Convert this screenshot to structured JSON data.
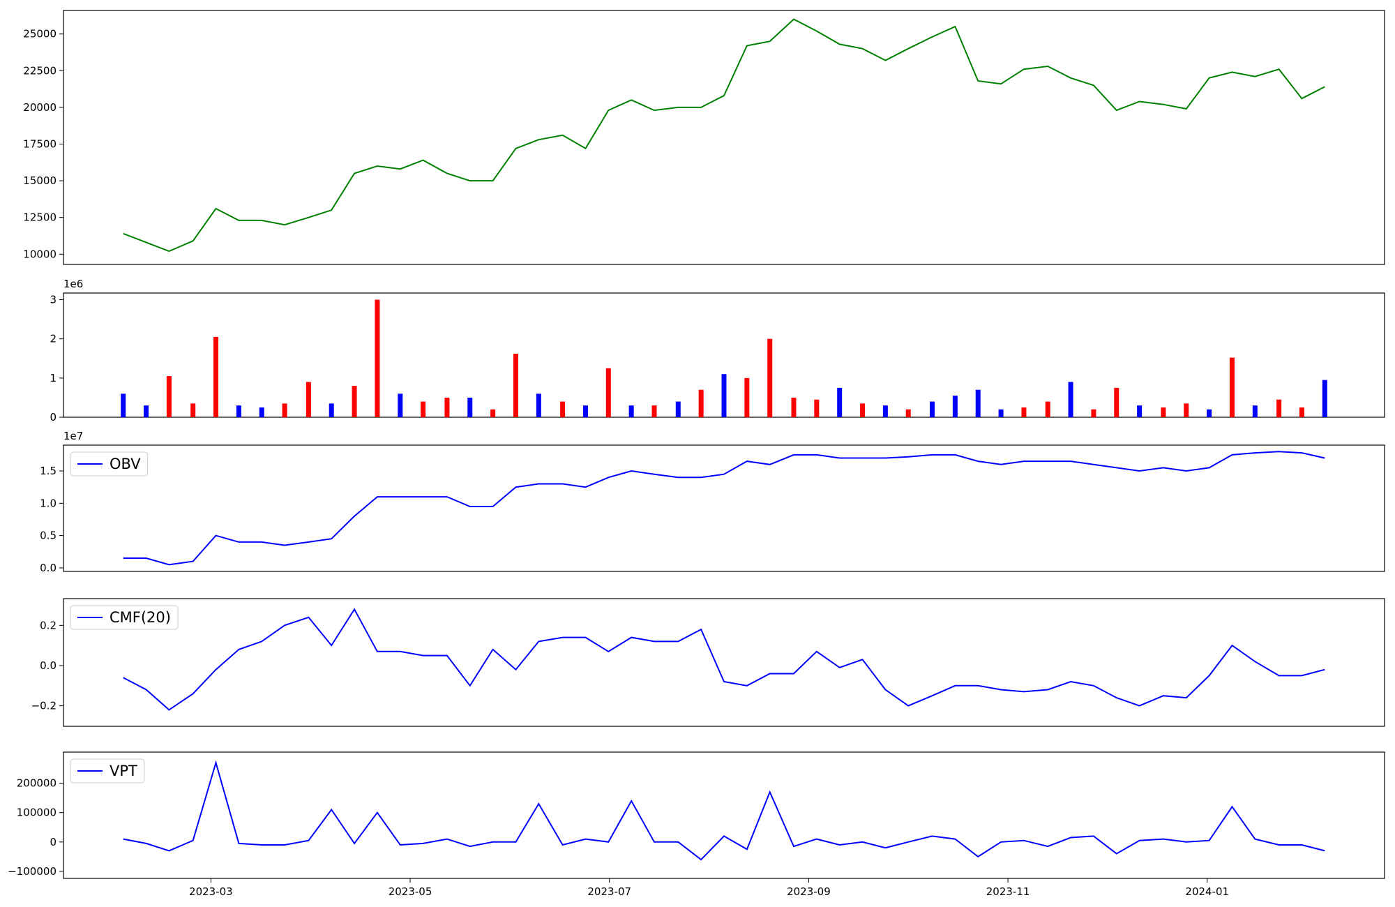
{
  "chart_data": [
    {
      "type": "line",
      "xlim": [
        1.52,
        14.78
      ],
      "ylim": [
        9300,
        26600
      ],
      "yticks": [
        10000,
        12500,
        15000,
        17500,
        20000,
        22500,
        25000
      ],
      "x": [
        2.12,
        2.35,
        2.58,
        2.82,
        3.05,
        3.28,
        3.51,
        3.74,
        3.98,
        4.21,
        4.44,
        4.67,
        4.9,
        5.13,
        5.37,
        5.6,
        5.83,
        6.06,
        6.29,
        6.53,
        6.76,
        6.99,
        7.22,
        7.45,
        7.69,
        7.92,
        8.15,
        8.38,
        8.61,
        8.85,
        9.08,
        9.31,
        9.54,
        9.77,
        10.0,
        10.24,
        10.47,
        10.7,
        10.93,
        11.16,
        11.4,
        11.63,
        11.86,
        12.09,
        12.32,
        12.56,
        12.79,
        13.02,
        13.25,
        13.48,
        13.72,
        13.95,
        14.18
      ],
      "series": [
        {
          "color": "#008000",
          "values": [
            11400,
            10800,
            10200,
            10900,
            13100,
            12300,
            12300,
            12000,
            12500,
            13000,
            15500,
            16000,
            15800,
            16400,
            15500,
            15000,
            15000,
            17200,
            17800,
            18100,
            17200,
            19800,
            20500,
            19800,
            20000,
            20000,
            20800,
            24200,
            24500,
            26000,
            25200,
            24300,
            24000,
            23200,
            24000,
            24800,
            25500,
            21800,
            21600,
            22600,
            22800,
            22000,
            21500,
            19800,
            20400,
            20200,
            19900,
            22000,
            22400,
            22100,
            22600,
            20600,
            21400
          ]
        }
      ]
    },
    {
      "type": "bar",
      "xlim": [
        1.52,
        14.78
      ],
      "ylim": [
        0,
        3.17
      ],
      "yticks": [
        0,
        1,
        2,
        3
      ],
      "offset_text": "1e6",
      "x": [
        2.12,
        2.35,
        2.58,
        2.82,
        3.05,
        3.28,
        3.51,
        3.74,
        3.98,
        4.21,
        4.44,
        4.67,
        4.9,
        5.13,
        5.37,
        5.6,
        5.83,
        6.06,
        6.29,
        6.53,
        6.76,
        6.99,
        7.22,
        7.45,
        7.69,
        7.92,
        8.15,
        8.38,
        8.61,
        8.85,
        9.08,
        9.31,
        9.54,
        9.77,
        10.0,
        10.24,
        10.47,
        10.7,
        10.93,
        11.16,
        11.4,
        11.63,
        11.86,
        12.09,
        12.32,
        12.56,
        12.79,
        13.02,
        13.25,
        13.48,
        13.72,
        13.95,
        14.18
      ],
      "series": [
        {
          "values": [
            0.6,
            0.3,
            1.05,
            0.35,
            2.05,
            0.3,
            0.25,
            0.35,
            0.9,
            0.35,
            0.8,
            3.0,
            0.6,
            0.4,
            0.5,
            0.5,
            0.2,
            1.62,
            0.6,
            0.4,
            0.3,
            1.25,
            0.3,
            0.3,
            0.4,
            0.7,
            1.1,
            1.0,
            2.0,
            0.5,
            0.45,
            0.75,
            0.35,
            0.3,
            0.2,
            0.4,
            0.55,
            0.7,
            0.2,
            0.25,
            0.4,
            0.9,
            0.2,
            0.75,
            0.3,
            0.25,
            0.35,
            0.2,
            1.52,
            0.3,
            0.45,
            0.25,
            0.95
          ],
          "colors": [
            "blue",
            "blue",
            "red",
            "red",
            "red",
            "blue",
            "blue",
            "red",
            "red",
            "blue",
            "red",
            "red",
            "blue",
            "red",
            "red",
            "blue",
            "red",
            "red",
            "blue",
            "red",
            "blue",
            "red",
            "blue",
            "red",
            "blue",
            "red",
            "blue",
            "red",
            "red",
            "red",
            "red",
            "blue",
            "red",
            "blue",
            "red",
            "blue",
            "blue",
            "blue",
            "blue",
            "red",
            "red",
            "blue",
            "red",
            "red",
            "blue",
            "red",
            "red",
            "blue",
            "red",
            "blue",
            "red",
            "red",
            "blue"
          ]
        }
      ]
    },
    {
      "type": "line",
      "xlim": [
        1.52,
        14.78
      ],
      "ylim": [
        -0.055,
        1.9
      ],
      "yticks": [
        {
          "value": 0,
          "label": "0.0"
        },
        0.5,
        {
          "value": 1,
          "label": "1.0"
        },
        1.5
      ],
      "offset_text": "1e7",
      "legend": "upper left",
      "x": [
        2.12,
        2.35,
        2.58,
        2.82,
        3.05,
        3.28,
        3.51,
        3.74,
        3.98,
        4.21,
        4.44,
        4.67,
        4.9,
        5.13,
        5.37,
        5.6,
        5.83,
        6.06,
        6.29,
        6.53,
        6.76,
        6.99,
        7.22,
        7.45,
        7.69,
        7.92,
        8.15,
        8.38,
        8.61,
        8.85,
        9.08,
        9.31,
        9.54,
        9.77,
        10.0,
        10.24,
        10.47,
        10.7,
        10.93,
        11.16,
        11.4,
        11.63,
        11.86,
        12.09,
        12.32,
        12.56,
        12.79,
        13.02,
        13.25,
        13.48,
        13.72,
        13.95,
        14.18
      ],
      "series": [
        {
          "name": "OBV",
          "color": "blue",
          "values": [
            0.15,
            0.15,
            0.05,
            0.1,
            0.5,
            0.4,
            0.4,
            0.35,
            0.4,
            0.45,
            0.8,
            1.1,
            1.1,
            1.1,
            1.1,
            0.95,
            0.95,
            1.25,
            1.3,
            1.3,
            1.25,
            1.4,
            1.5,
            1.45,
            1.4,
            1.4,
            1.45,
            1.65,
            1.6,
            1.75,
            1.75,
            1.7,
            1.7,
            1.7,
            1.72,
            1.75,
            1.75,
            1.65,
            1.6,
            1.65,
            1.65,
            1.65,
            1.6,
            1.55,
            1.5,
            1.55,
            1.5,
            1.55,
            1.75,
            1.78,
            1.8,
            1.78,
            1.7
          ]
        }
      ]
    },
    {
      "type": "line",
      "xlim": [
        1.52,
        14.78
      ],
      "ylim": [
        -0.302,
        0.333
      ],
      "yticks": [
        {
          "value": -0.2,
          "label": "−0.2"
        },
        {
          "value": 0,
          "label": "0.0"
        },
        0.2
      ],
      "legend": "upper left",
      "x": [
        2.12,
        2.35,
        2.58,
        2.82,
        3.05,
        3.28,
        3.51,
        3.74,
        3.98,
        4.21,
        4.44,
        4.67,
        4.9,
        5.13,
        5.37,
        5.6,
        5.83,
        6.06,
        6.29,
        6.53,
        6.76,
        6.99,
        7.22,
        7.45,
        7.69,
        7.92,
        8.15,
        8.38,
        8.61,
        8.85,
        9.08,
        9.31,
        9.54,
        9.77,
        10.0,
        10.24,
        10.47,
        10.7,
        10.93,
        11.16,
        11.4,
        11.63,
        11.86,
        12.09,
        12.32,
        12.56,
        12.79,
        13.02,
        13.25,
        13.48,
        13.72,
        13.95,
        14.18
      ],
      "series": [
        {
          "name": "CMF(20)",
          "color": "blue",
          "values": [
            -0.06,
            -0.12,
            -0.22,
            -0.14,
            -0.02,
            0.08,
            0.12,
            0.2,
            0.24,
            0.1,
            0.28,
            0.07,
            0.07,
            0.05,
            0.05,
            -0.1,
            0.08,
            -0.02,
            0.12,
            0.14,
            0.14,
            0.07,
            0.14,
            0.12,
            0.12,
            0.18,
            -0.08,
            -0.1,
            -0.04,
            -0.04,
            0.07,
            -0.01,
            0.03,
            -0.12,
            -0.2,
            -0.15,
            -0.1,
            -0.1,
            -0.12,
            -0.13,
            -0.12,
            -0.08,
            -0.1,
            -0.16,
            -0.2,
            -0.15,
            -0.16,
            -0.05,
            0.1,
            0.02,
            -0.05,
            -0.05,
            -0.02
          ]
        }
      ]
    },
    {
      "type": "line",
      "xlim": [
        1.52,
        14.78
      ],
      "ylim": [
        -124000,
        306000
      ],
      "yticks": [
        {
          "value": -100000,
          "label": "−100000"
        },
        0,
        100000,
        200000
      ],
      "legend": "upper left",
      "xticks": [
        {
          "value": 3,
          "label": "2023-03"
        },
        {
          "value": 5,
          "label": "2023-05"
        },
        {
          "value": 7,
          "label": "2023-07"
        },
        {
          "value": 9,
          "label": "2023-09"
        },
        {
          "value": 11,
          "label": "2023-11"
        },
        {
          "value": 13,
          "label": "2024-01"
        }
      ],
      "x": [
        2.12,
        2.35,
        2.58,
        2.82,
        3.05,
        3.28,
        3.51,
        3.74,
        3.98,
        4.21,
        4.44,
        4.67,
        4.9,
        5.13,
        5.37,
        5.6,
        5.83,
        6.06,
        6.29,
        6.53,
        6.76,
        6.99,
        7.22,
        7.45,
        7.69,
        7.92,
        8.15,
        8.38,
        8.61,
        8.85,
        9.08,
        9.31,
        9.54,
        9.77,
        10.0,
        10.24,
        10.47,
        10.7,
        10.93,
        11.16,
        11.4,
        11.63,
        11.86,
        12.09,
        12.32,
        12.56,
        12.79,
        13.02,
        13.25,
        13.48,
        13.72,
        13.95,
        14.18
      ],
      "series": [
        {
          "name": "VPT",
          "color": "blue",
          "values": [
            10000,
            -5000,
            -30000,
            5000,
            270000,
            -5000,
            -10000,
            -10000,
            5000,
            110000,
            -5000,
            100000,
            -10000,
            -5000,
            10000,
            -15000,
            0,
            0,
            130000,
            -10000,
            10000,
            0,
            140000,
            0,
            0,
            -60000,
            20000,
            -25000,
            170000,
            -15000,
            10000,
            -10000,
            0,
            -20000,
            0,
            20000,
            10000,
            -50000,
            0,
            5000,
            -15000,
            15000,
            20000,
            -40000,
            5000,
            10000,
            0,
            5000,
            120000,
            10000,
            -10000,
            -10000,
            -30000
          ]
        }
      ]
    }
  ]
}
